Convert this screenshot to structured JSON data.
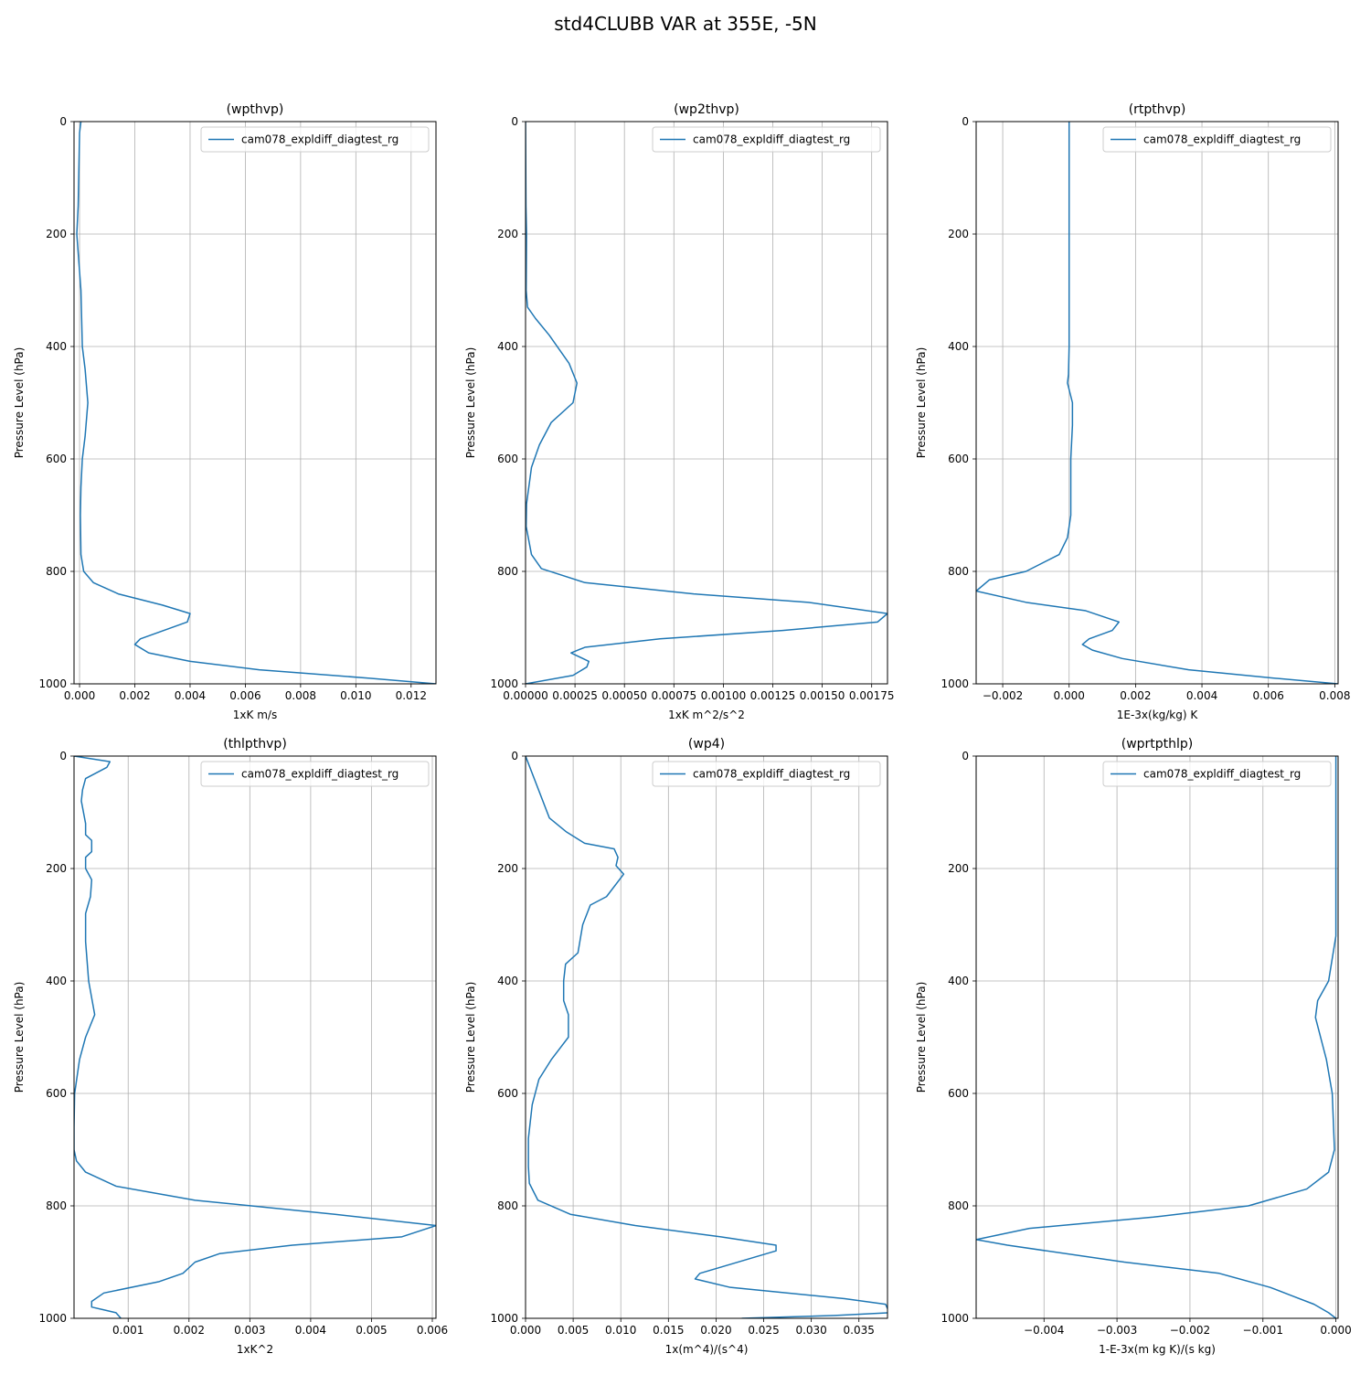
{
  "figure": {
    "title": "std4CLUBB VAR at 355E, -5N"
  },
  "chart_data": [
    {
      "type": "line",
      "title": "(wpthvp)",
      "xlabel": "1xK m/s",
      "ylabel": "Pressure Level (hPa)",
      "xlim": [
        -0.0002,
        0.0129
      ],
      "ylim": [
        1000,
        0
      ],
      "y_inverted": true,
      "grid": true,
      "legend_position": "top-right",
      "xticks": [
        0,
        0.002,
        0.004,
        0.006,
        0.008,
        0.01,
        0.012
      ],
      "xtick_labels": [
        "0.000",
        "0.002",
        "0.004",
        "0.006",
        "0.008",
        "0.010",
        "0.012"
      ],
      "yticks": [
        0,
        200,
        400,
        600,
        800,
        1000
      ],
      "ytick_labels": [
        "0",
        "200",
        "400",
        "600",
        "800",
        "1000"
      ],
      "series": [
        {
          "name": "cam078_expldiff_diagtest_rg",
          "color": "#1f77b4",
          "x": [
            5e-05,
            0.0,
            -5e-05,
            -0.0001,
            5e-05,
            0.0001,
            0.0002,
            0.0003,
            0.0002,
            0.0001,
            5e-05,
            3e-05,
            5e-05,
            0.00015,
            0.0005,
            0.0014,
            0.003,
            0.004,
            0.0039,
            0.0022,
            0.002,
            0.0025,
            0.004,
            0.0065,
            0.0105,
            0.0129
          ],
          "y": [
            0,
            20,
            150,
            200,
            300,
            400,
            440,
            500,
            560,
            600,
            650,
            700,
            770,
            800,
            820,
            840,
            860,
            875,
            890,
            920,
            930,
            945,
            960,
            975,
            990,
            1000
          ]
        }
      ]
    },
    {
      "type": "line",
      "title": "(wp2thvp)",
      "xlabel": "1xK m^2/s^2",
      "ylabel": "Pressure Level (hPa)",
      "xlim": [
        0,
        0.00183
      ],
      "ylim": [
        1000,
        0
      ],
      "y_inverted": true,
      "grid": true,
      "legend_position": "top-right",
      "xticks": [
        0,
        0.00025,
        0.0005,
        0.00075,
        0.001,
        0.00125,
        0.0015,
        0.00175
      ],
      "xtick_labels": [
        "0.00000",
        "0.00025",
        "0.00050",
        "0.00075",
        "0.00100",
        "0.00125",
        "0.00150",
        "0.00175"
      ],
      "yticks": [
        0,
        200,
        400,
        600,
        800,
        1000
      ],
      "ytick_labels": [
        "0",
        "200",
        "400",
        "600",
        "800",
        "1000"
      ],
      "series": [
        {
          "name": "cam078_expldiff_diagtest_rg",
          "color": "#1f77b4",
          "x": [
            0,
            2e-06,
            5e-06,
            3e-06,
            1e-05,
            5e-05,
            0.00012,
            0.00022,
            0.00026,
            0.00024,
            0.00013,
            7e-05,
            3e-05,
            5e-06,
            3e-06,
            3e-05,
            8e-05,
            0.0003,
            0.00085,
            0.00143,
            0.00183,
            0.00178,
            0.0013,
            0.00068,
            0.0003,
            0.00023,
            0.00032,
            0.00031,
            0.00024,
            0.0
          ],
          "y": [
            0,
            150,
            200,
            300,
            330,
            350,
            380,
            430,
            465,
            500,
            535,
            575,
            615,
            680,
            720,
            770,
            795,
            820,
            840,
            855,
            875,
            890,
            905,
            920,
            935,
            945,
            960,
            970,
            985,
            1000
          ]
        }
      ]
    },
    {
      "type": "line",
      "title": "(rtpthvp)",
      "xlabel": "1E-3x(kg/kg) K",
      "ylabel": "Pressure Level (hPa)",
      "xlim": [
        -0.0028,
        0.0081
      ],
      "ylim": [
        1000,
        0
      ],
      "y_inverted": true,
      "grid": true,
      "legend_position": "top-right",
      "xticks": [
        -0.002,
        0,
        0.002,
        0.004,
        0.006,
        0.008
      ],
      "xtick_labels": [
        "−0.002",
        "0.000",
        "0.002",
        "0.004",
        "0.006",
        "0.008"
      ],
      "yticks": [
        0,
        200,
        400,
        600,
        800,
        1000
      ],
      "ytick_labels": [
        "0",
        "200",
        "400",
        "600",
        "800",
        "1000"
      ],
      "series": [
        {
          "name": "cam078_expldiff_diagtest_rg",
          "color": "#1f77b4",
          "x": [
            0.0,
            0.0,
            0.0,
            -2e-05,
            -5e-05,
            0.0001,
            0.0001,
            5e-05,
            5e-05,
            -5e-05,
            -0.0003,
            -0.0013,
            -0.0024,
            -0.0028,
            -0.0013,
            0.0005,
            0.0015,
            0.0013,
            0.0006,
            0.0004,
            0.0007,
            0.0016,
            0.0036,
            0.0062,
            0.0081
          ],
          "y": [
            0,
            200,
            400,
            450,
            465,
            500,
            540,
            600,
            700,
            740,
            770,
            800,
            815,
            835,
            855,
            870,
            890,
            905,
            920,
            930,
            940,
            955,
            975,
            990,
            1000
          ]
        }
      ]
    },
    {
      "type": "line",
      "title": "(thlpthvp)",
      "xlabel": "1xK^2",
      "ylabel": "Pressure Level (hPa)",
      "xlim": [
        0.00011,
        0.00606
      ],
      "ylim": [
        1000,
        0
      ],
      "y_inverted": true,
      "grid": true,
      "legend_position": "top-right",
      "xticks": [
        0.001,
        0.002,
        0.003,
        0.004,
        0.005,
        0.006
      ],
      "xtick_labels": [
        "0.001",
        "0.002",
        "0.003",
        "0.004",
        "0.005",
        "0.006"
      ],
      "yticks": [
        0,
        200,
        400,
        600,
        800,
        1000
      ],
      "ytick_labels": [
        "0",
        "200",
        "400",
        "600",
        "800",
        "1000"
      ],
      "series": [
        {
          "name": "cam078_expldiff_diagtest_rg",
          "color": "#1f77b4",
          "x": [
            0.00011,
            0.0007,
            0.00065,
            0.0003,
            0.00025,
            0.00023,
            0.0003,
            0.0003,
            0.0004,
            0.0004,
            0.0003,
            0.0003,
            0.0004,
            0.00038,
            0.0003,
            0.0003,
            0.00035,
            0.00045,
            0.0003,
            0.0002,
            0.00012,
            0.00011,
            0.00011,
            0.00015,
            0.0003,
            0.0008,
            0.0021,
            0.0044,
            0.00606,
            0.0055,
            0.0037,
            0.0025,
            0.0021,
            0.0019,
            0.0015,
            0.0006,
            0.0004,
            0.0004,
            0.0006,
            0.0008,
            0.00088
          ],
          "y": [
            0,
            10,
            20,
            40,
            60,
            80,
            120,
            140,
            150,
            170,
            180,
            200,
            220,
            250,
            280,
            330,
            400,
            460,
            500,
            540,
            600,
            660,
            700,
            720,
            740,
            765,
            790,
            815,
            835,
            855,
            870,
            885,
            900,
            920,
            935,
            955,
            970,
            980,
            985,
            990,
            1000
          ]
        }
      ]
    },
    {
      "type": "line",
      "title": "(wp4)",
      "xlabel": "1x(m^4)/(s^4)",
      "ylabel": "Pressure Level (hPa)",
      "xlim": [
        0,
        0.038
      ],
      "ylim": [
        1000,
        0
      ],
      "y_inverted": true,
      "grid": true,
      "legend_position": "top-right",
      "xticks": [
        0,
        0.005,
        0.01,
        0.015,
        0.02,
        0.025,
        0.03,
        0.035
      ],
      "xtick_labels": [
        "0.000",
        "0.005",
        "0.010",
        "0.015",
        "0.020",
        "0.025",
        "0.030",
        "0.035"
      ],
      "yticks": [
        0,
        200,
        400,
        600,
        800,
        1000
      ],
      "ytick_labels": [
        "0",
        "200",
        "400",
        "600",
        "800",
        "1000"
      ],
      "series": [
        {
          "name": "cam078_expldiff_diagtest_rg",
          "color": "#1f77b4",
          "x": [
            0.0,
            0.0025,
            0.0043,
            0.0062,
            0.0093,
            0.0097,
            0.0095,
            0.0103,
            0.0085,
            0.0068,
            0.006,
            0.0055,
            0.0042,
            0.004,
            0.004,
            0.0045,
            0.0045,
            0.0027,
            0.0014,
            0.0007,
            0.0003,
            0.0003,
            0.0004,
            0.0013,
            0.0047,
            0.0115,
            0.0205,
            0.0263,
            0.0263,
            0.0183,
            0.0178,
            0.0215,
            0.0335,
            0.0378,
            0.0382,
            0.0325,
            0.0227
          ],
          "y": [
            0,
            110,
            135,
            155,
            165,
            180,
            195,
            210,
            250,
            265,
            300,
            350,
            370,
            400,
            435,
            460,
            500,
            540,
            575,
            620,
            680,
            730,
            760,
            790,
            815,
            835,
            855,
            870,
            880,
            920,
            930,
            945,
            965,
            975,
            990,
            995,
            1000
          ]
        }
      ]
    },
    {
      "type": "line",
      "title": "(wprtpthlp)",
      "xlabel": "1-E-3x(m kg K)/(s kg)",
      "ylabel": "Pressure Level (hPa)",
      "xlim": [
        -0.00493,
        3e-05
      ],
      "ylim": [
        1000,
        0
      ],
      "y_inverted": true,
      "grid": true,
      "legend_position": "top-right",
      "xticks": [
        -0.004,
        -0.003,
        -0.002,
        -0.001,
        0
      ],
      "xtick_labels": [
        "−0.004",
        "−0.003",
        "−0.002",
        "−0.001",
        "0.000"
      ],
      "yticks": [
        0,
        200,
        400,
        600,
        800,
        1000
      ],
      "ytick_labels": [
        "0",
        "200",
        "400",
        "600",
        "800",
        "1000"
      ],
      "series": [
        {
          "name": "cam078_expldiff_diagtest_rg",
          "color": "#1f77b4",
          "x": [
            0.0,
            0.0,
            -0.0001,
            -0.00025,
            -0.00028,
            -0.00013,
            -5e-05,
            -2e-05,
            -0.0001,
            -0.0004,
            -0.0012,
            -0.0025,
            -0.0042,
            -0.00493,
            -0.0045,
            -0.0029,
            -0.0016,
            -0.0009,
            -0.0006,
            -0.0003,
            -0.0001,
            0.0
          ],
          "y": [
            0,
            320,
            400,
            435,
            465,
            540,
            600,
            700,
            740,
            770,
            800,
            820,
            840,
            860,
            870,
            900,
            920,
            945,
            960,
            975,
            990,
            1000
          ]
        }
      ]
    }
  ]
}
